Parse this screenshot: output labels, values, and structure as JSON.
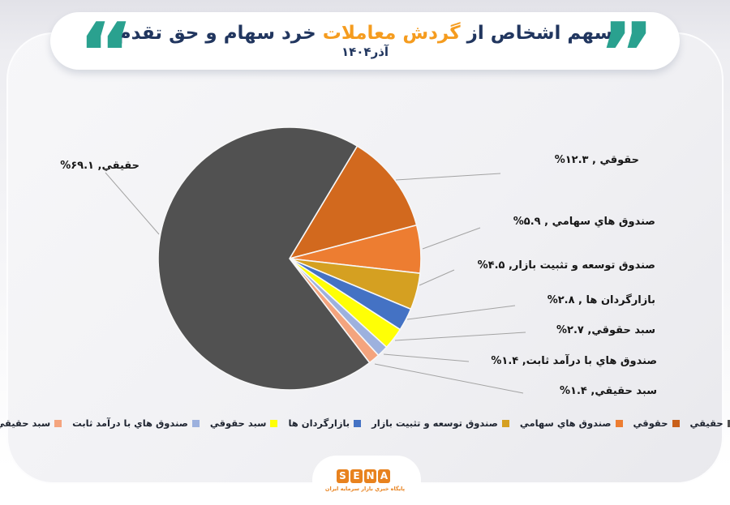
{
  "header": {
    "title_pre": "سهم اشخاص از ",
    "title_highlight": "گردش معاملات",
    "title_post": " خرد سهام و حق تقدم",
    "subtitle": "آذر۱۴۰۴",
    "open_quote": "“",
    "close_quote": "”",
    "quote_color": "#2AA18F",
    "title_color": "#21365F",
    "highlight_color": "#F59C1F"
  },
  "chart_data": {
    "type": "pie",
    "title": "سهم اشخاص از گردش معاملات خرد سهام و حق تقدم",
    "subtitle": "آذر۱۴۰۴",
    "start_angle_deg": 31,
    "slices": [
      {
        "label": "حقوقي",
        "value": 12.3,
        "display": "حقوقي , ۱۲.۳%",
        "color": "#D2691E"
      },
      {
        "label": "صندوق هاي سهامي",
        "value": 5.9,
        "display": "صندوق هاي سهامي , ۵.۹%",
        "color": "#ED7D31"
      },
      {
        "label": "صندوق توسعه و تثبيت بازار",
        "value": 4.5,
        "display": "صندوق توسعه و تثبيت بازار, ۴.۵%",
        "color": "#D5A021"
      },
      {
        "label": "بازارگردان ها",
        "value": 2.8,
        "display": "بازارگردان ها , ۲.۸%",
        "color": "#4472C4"
      },
      {
        "label": "سبد حقوقي",
        "value": 2.7,
        "display": "سبد حقوقي, ۲.۷%",
        "color": "#FFFF05"
      },
      {
        "label": "صندوق هاي با درآمد ثابت",
        "value": 1.4,
        "display": "صندوق هاي با درآمد ثابت, ۱.۴%",
        "color": "#9DB1DE"
      },
      {
        "label": "سبد حقيقي",
        "value": 1.4,
        "display": "سبد حقيقي, ۱.۴%",
        "color": "#F4A47E"
      },
      {
        "label": "حقيقي",
        "value": 69.1,
        "display": "حقيقي, ۶۹.۱%",
        "color": "#515151"
      }
    ],
    "legend_position": "bottom",
    "legend_direction": "rtl"
  },
  "legend": {
    "items": [
      {
        "label": "حقيقي",
        "color": "#515151"
      },
      {
        "label": "حقوقي",
        "color": "#C9601B"
      },
      {
        "label": "صندوق هاي سهامي",
        "color": "#ED7D31"
      },
      {
        "label": "صندوق توسعه و تثبيت بازار",
        "color": "#D5A021"
      },
      {
        "label": "بازارگردان ها",
        "color": "#4472C4"
      },
      {
        "label": "سبد حقوقي",
        "color": "#FFFF05"
      },
      {
        "label": "صندوق هاي با درآمد ثابت",
        "color": "#9DB1DE"
      },
      {
        "label": "سبد حقيقي",
        "color": "#F4A47E"
      }
    ]
  },
  "footer": {
    "logo_letters": [
      "S",
      "E",
      "N",
      "A"
    ],
    "logo_subtext": "پايگاه خبري بازار سرمايه ايران",
    "logo_color": "#E8821E"
  }
}
